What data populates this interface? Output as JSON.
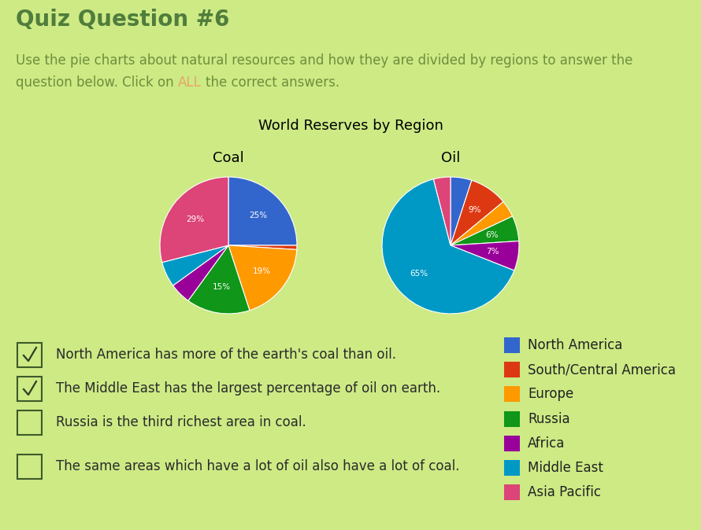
{
  "title": "Quiz Question #6",
  "instructions": {
    "text": "Use the pie charts about natural resources and how they are divided by regions to answer the question below. Click on",
    "emphasis": "ALL",
    "text_after": "the correct answers."
  },
  "figure_title": "World Reserves by Region",
  "chart_data": [
    {
      "type": "pie",
      "title": "Coal",
      "categories": [
        "North America",
        "South/Central America",
        "Europe",
        "Russia",
        "Africa",
        "Middle East",
        "Asia Pacific"
      ],
      "values": [
        25,
        1,
        19,
        15,
        5,
        6,
        29
      ],
      "value_labels": [
        "25%",
        null,
        "19%",
        "15%",
        null,
        null,
        "29%"
      ],
      "colors": [
        "#3366cc",
        "#dc3912",
        "#ff9900",
        "#109618",
        "#990099",
        "#0099c6",
        "#dd4477"
      ],
      "data_labels": true
    },
    {
      "type": "pie",
      "title": "Oil",
      "categories": [
        "North America",
        "South/Central America",
        "Europe",
        "Russia",
        "Africa",
        "Middle East",
        "Asia Pacific"
      ],
      "values": [
        5,
        9,
        4,
        6,
        7,
        65,
        4
      ],
      "value_labels": [
        null,
        "9%",
        null,
        "6%",
        "7%",
        "65%",
        null
      ],
      "colors": [
        "#3366cc",
        "#dc3912",
        "#ff9900",
        "#109618",
        "#990099",
        "#0099c6",
        "#dd4477"
      ],
      "data_labels": true
    }
  ],
  "answers": [
    {
      "text": "North America has more of the earth's coal than oil.",
      "checked": true
    },
    {
      "text": "The Middle East has the largest percentage of oil on earth.",
      "checked": true
    },
    {
      "text": "Russia is the third richest area in coal.",
      "checked": false
    },
    {
      "text": "The same areas which have a lot of oil also have a lot of coal.",
      "checked": false
    }
  ]
}
